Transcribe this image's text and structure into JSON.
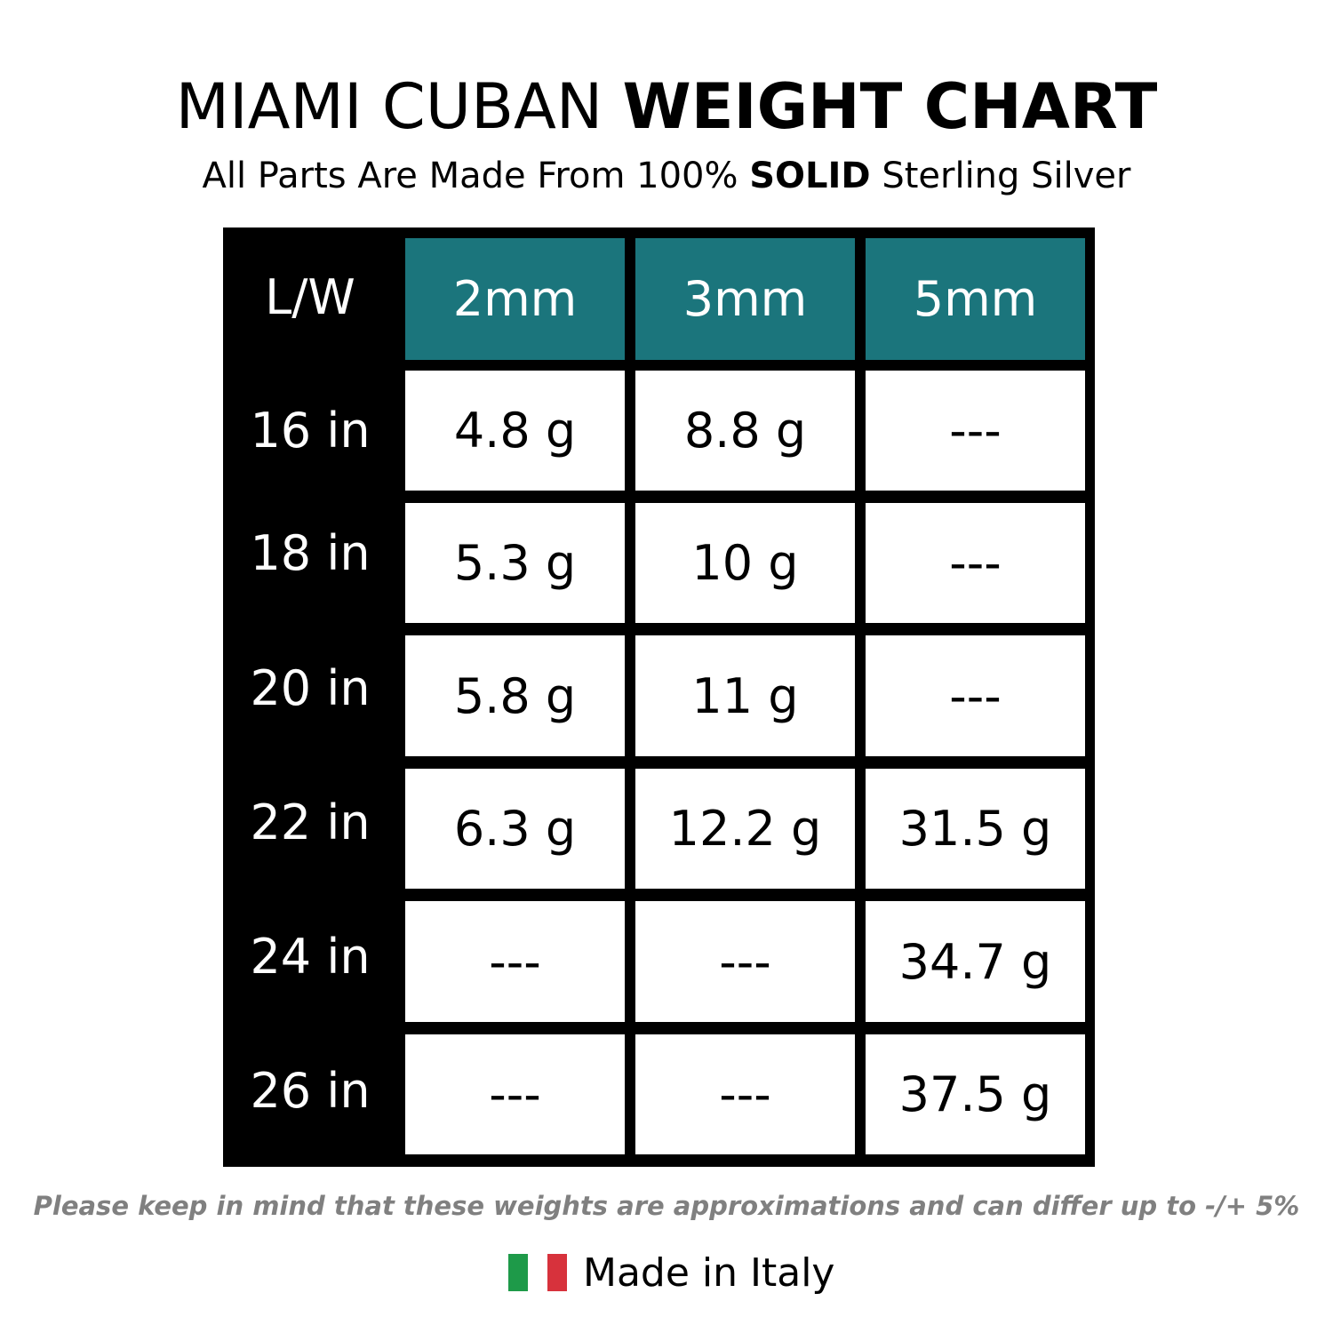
{
  "header": {
    "title_regular": "MIAMI CUBAN",
    "title_bold": "WEIGHT CHART",
    "subtitle_pre": "All Parts Are Made From 100%",
    "subtitle_bold": "SOLID",
    "subtitle_post": "Sterling Silver"
  },
  "table": {
    "corner_label": "L/W",
    "columns": [
      "2mm",
      "3mm",
      "5mm"
    ],
    "rows": [
      {
        "length": "16 in",
        "values": [
          "4.8 g",
          "8.8 g",
          "---"
        ]
      },
      {
        "length": "18 in",
        "values": [
          "5.3 g",
          "10 g",
          "---"
        ]
      },
      {
        "length": "20 in",
        "values": [
          "5.8 g",
          "11 g",
          "---"
        ]
      },
      {
        "length": "22 in",
        "values": [
          "6.3 g",
          "12.2 g",
          "31.5 g"
        ]
      },
      {
        "length": "24 in",
        "values": [
          "---",
          "---",
          "34.7 g"
        ]
      },
      {
        "length": "26 in",
        "values": [
          "---",
          "---",
          "37.5 g"
        ]
      }
    ],
    "header_color": "#1b757c"
  },
  "footer": {
    "disclaimer": "Please keep in mind that these weights are approximations and can differ up to -/+ 5%",
    "made_in": "Made in Italy",
    "flag_icon": "italy-flag-icon",
    "flag_colors": [
      "#1e9a49",
      "#ffffff",
      "#d7323c"
    ]
  }
}
